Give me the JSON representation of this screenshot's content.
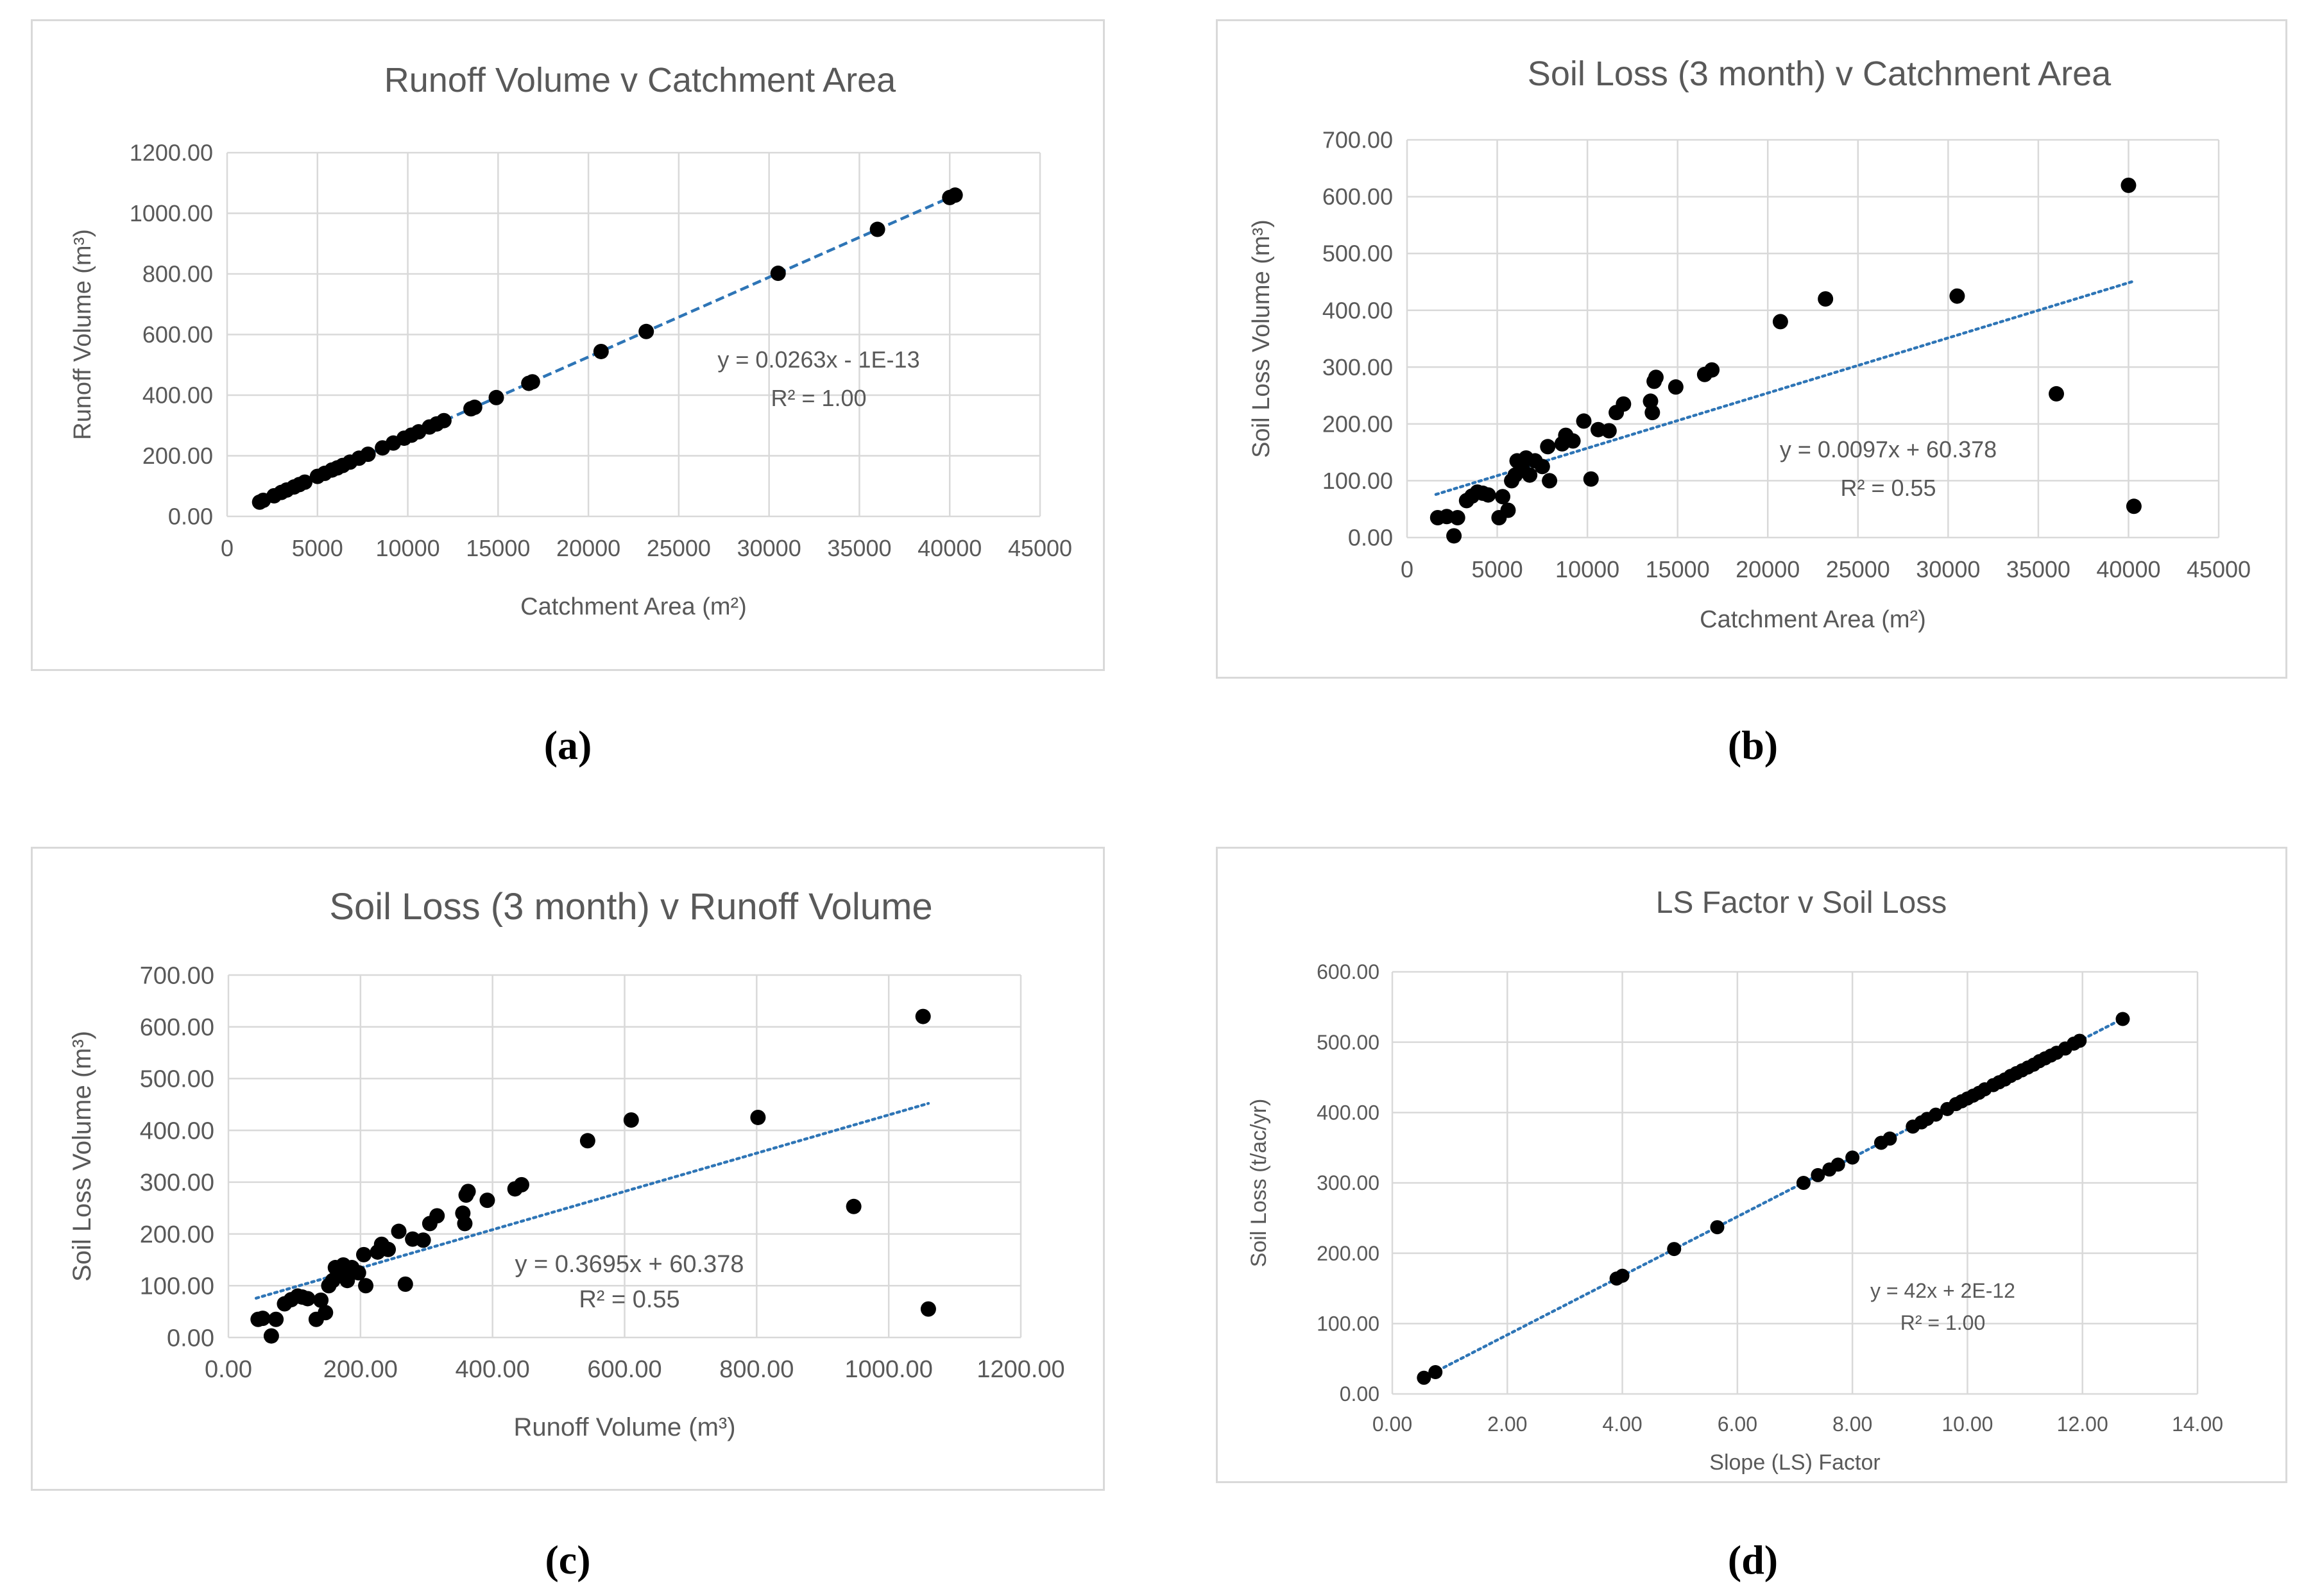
{
  "captions": {
    "a": "(a)",
    "b": "(b)",
    "c": "(c)",
    "d": "(d)"
  },
  "colors": {
    "point": "#000000",
    "trend": "#2e75b6",
    "grid": "#d9d9d9",
    "text": "#595959"
  },
  "chart_data": [
    {
      "id": "a",
      "type": "scatter",
      "title": "Runoff Volume v Catchment Area",
      "xlabel": "Catchment Area (m²)",
      "ylabel": "Runoff Volume (m³)",
      "xlim": [
        0,
        45000
      ],
      "xstep": 5000,
      "xdec": 0,
      "ylim": [
        0,
        1200
      ],
      "ystep": 200,
      "ydec": 2,
      "x_ticks": [
        "0",
        "5000",
        "10000",
        "15000",
        "20000",
        "25000",
        "30000",
        "35000",
        "40000",
        "45000"
      ],
      "y_ticks": [
        "0.00",
        "200.00",
        "400.00",
        "600.00",
        "800.00",
        "1000.00",
        "1200.00"
      ],
      "trendline": {
        "slope": 0.0263,
        "intercept": 0,
        "style": "dashed",
        "x_range": [
          1800,
          40300
        ]
      },
      "equation": "y = 0.0263x - 1E-13",
      "r2": "R² = 1.00",
      "points": [
        [
          1800,
          47
        ],
        [
          2000,
          53
        ],
        [
          2600,
          68
        ],
        [
          3000,
          79
        ],
        [
          3300,
          87
        ],
        [
          3700,
          97
        ],
        [
          4000,
          105
        ],
        [
          4300,
          113
        ],
        [
          5000,
          132
        ],
        [
          5400,
          142
        ],
        [
          5800,
          153
        ],
        [
          6100,
          160
        ],
        [
          6400,
          168
        ],
        [
          6800,
          179
        ],
        [
          7300,
          192
        ],
        [
          7800,
          205
        ],
        [
          8600,
          226
        ],
        [
          9200,
          242
        ],
        [
          9800,
          258
        ],
        [
          10200,
          268
        ],
        [
          10600,
          279
        ],
        [
          11200,
          295
        ],
        [
          11600,
          305
        ],
        [
          12000,
          316
        ],
        [
          13500,
          355
        ],
        [
          13700,
          360
        ],
        [
          14900,
          392
        ],
        [
          16700,
          439
        ],
        [
          16900,
          444
        ],
        [
          20700,
          544
        ],
        [
          23200,
          610
        ],
        [
          30500,
          802
        ],
        [
          36000,
          947
        ],
        [
          40000,
          1052
        ],
        [
          40300,
          1060
        ]
      ]
    },
    {
      "id": "b",
      "type": "scatter",
      "title": "Soil Loss (3 month) v Catchment Area",
      "xlabel": "Catchment Area (m²)",
      "ylabel": "Soil Loss Volume (m³)",
      "xlim": [
        0,
        45000
      ],
      "xstep": 5000,
      "xdec": 0,
      "ylim": [
        0,
        700
      ],
      "ystep": 100,
      "ydec": 2,
      "x_ticks": [
        "0",
        "5000",
        "10000",
        "15000",
        "20000",
        "25000",
        "30000",
        "35000",
        "40000",
        "45000"
      ],
      "y_ticks": [
        "0.00",
        "100.00",
        "200.00",
        "300.00",
        "400.00",
        "500.00",
        "600.00",
        "700.00"
      ],
      "trendline": {
        "slope": 0.0097,
        "intercept": 60.378,
        "style": "dotted",
        "x_range": [
          1600,
          40300
        ]
      },
      "equation": "y = 0.0097x + 60.378",
      "r2": "R² = 0.55",
      "points": [
        [
          1700,
          35
        ],
        [
          2200,
          37
        ],
        [
          2600,
          3
        ],
        [
          2800,
          35
        ],
        [
          3300,
          65
        ],
        [
          3600,
          73
        ],
        [
          3900,
          80
        ],
        [
          4200,
          78
        ],
        [
          4500,
          75
        ],
        [
          5100,
          35
        ],
        [
          5300,
          72
        ],
        [
          5600,
          48
        ],
        [
          5800,
          100
        ],
        [
          6000,
          110
        ],
        [
          6100,
          135
        ],
        [
          6400,
          120
        ],
        [
          6600,
          140
        ],
        [
          6800,
          110
        ],
        [
          7100,
          135
        ],
        [
          7500,
          125
        ],
        [
          7800,
          160
        ],
        [
          7900,
          100
        ],
        [
          8600,
          165
        ],
        [
          8800,
          180
        ],
        [
          9200,
          170
        ],
        [
          9800,
          205
        ],
        [
          10200,
          103
        ],
        [
          10600,
          190
        ],
        [
          11200,
          188
        ],
        [
          11600,
          220
        ],
        [
          12000,
          235
        ],
        [
          13500,
          240
        ],
        [
          13600,
          220
        ],
        [
          13700,
          275
        ],
        [
          13800,
          282
        ],
        [
          14900,
          265
        ],
        [
          16500,
          287
        ],
        [
          16900,
          295
        ],
        [
          20700,
          380
        ],
        [
          23200,
          420
        ],
        [
          30500,
          425
        ],
        [
          36000,
          253
        ],
        [
          40000,
          620
        ],
        [
          40300,
          55
        ]
      ]
    },
    {
      "id": "c",
      "type": "scatter",
      "title": "Soil Loss (3 month) v Runoff Volume",
      "xlabel": "Runoff Volume (m³)",
      "ylabel": "Soil Loss Volume (m³)",
      "xlim": [
        0,
        1200
      ],
      "xstep": 200,
      "xdec": 2,
      "ylim": [
        0,
        700
      ],
      "ystep": 100,
      "ydec": 2,
      "x_ticks": [
        "0.00",
        "200.00",
        "400.00",
        "600.00",
        "800.00",
        "1000.00",
        "1200.00"
      ],
      "y_ticks": [
        "0.00",
        "100.00",
        "200.00",
        "300.00",
        "400.00",
        "500.00",
        "600.00",
        "700.00"
      ],
      "trendline": {
        "slope": 0.3695,
        "intercept": 60.378,
        "style": "dotted",
        "x_range": [
          42,
          1060
        ]
      },
      "equation": "y = 0.3695x + 60.378",
      "r2": "R² = 0.55",
      "points": [
        [
          45,
          35
        ],
        [
          52,
          37
        ],
        [
          65,
          3
        ],
        [
          72,
          35
        ],
        [
          85,
          65
        ],
        [
          95,
          73
        ],
        [
          105,
          80
        ],
        [
          112,
          78
        ],
        [
          120,
          75
        ],
        [
          133,
          35
        ],
        [
          140,
          72
        ],
        [
          147,
          48
        ],
        [
          152,
          100
        ],
        [
          158,
          110
        ],
        [
          162,
          135
        ],
        [
          168,
          120
        ],
        [
          174,
          140
        ],
        [
          180,
          110
        ],
        [
          187,
          135
        ],
        [
          197,
          125
        ],
        [
          205,
          160
        ],
        [
          208,
          100
        ],
        [
          226,
          165
        ],
        [
          232,
          180
        ],
        [
          242,
          170
        ],
        [
          258,
          205
        ],
        [
          268,
          103
        ],
        [
          279,
          190
        ],
        [
          295,
          188
        ],
        [
          305,
          220
        ],
        [
          316,
          235
        ],
        [
          355,
          240
        ],
        [
          358,
          220
        ],
        [
          360,
          275
        ],
        [
          363,
          282
        ],
        [
          392,
          265
        ],
        [
          434,
          287
        ],
        [
          444,
          295
        ],
        [
          544,
          380
        ],
        [
          610,
          420
        ],
        [
          802,
          425
        ],
        [
          947,
          253
        ],
        [
          1052,
          620
        ],
        [
          1060,
          55
        ]
      ]
    },
    {
      "id": "d",
      "type": "scatter",
      "title": "LS Factor v Soil Loss",
      "xlabel": "Slope (LS) Factor",
      "ylabel": "Soil Loss (t/ac/yr)",
      "xlim": [
        0,
        14
      ],
      "xstep": 2,
      "xdec": 2,
      "ylim": [
        0,
        600
      ],
      "ystep": 100,
      "ydec": 2,
      "x_ticks": [
        "0.00",
        "2.00",
        "4.00",
        "6.00",
        "8.00",
        "10.00",
        "12.00",
        "14.00"
      ],
      "y_ticks": [
        "0.00",
        "100.00",
        "200.00",
        "300.00",
        "400.00",
        "500.00",
        "600.00"
      ],
      "trendline": {
        "slope": 42,
        "intercept": 0,
        "style": "dotted",
        "x_range": [
          0.5,
          12.7
        ]
      },
      "equation": "y = 42x + 2E-12",
      "r2": "R² = 1.00",
      "points": [
        [
          0.55,
          23
        ],
        [
          0.75,
          31
        ],
        [
          3.9,
          164
        ],
        [
          4.0,
          168
        ],
        [
          4.9,
          206
        ],
        [
          5.65,
          237
        ],
        [
          7.15,
          300
        ],
        [
          7.4,
          311
        ],
        [
          7.6,
          319
        ],
        [
          7.75,
          326
        ],
        [
          8.0,
          336
        ],
        [
          8.5,
          357
        ],
        [
          8.65,
          363
        ],
        [
          9.05,
          380
        ],
        [
          9.2,
          386
        ],
        [
          9.3,
          391
        ],
        [
          9.45,
          397
        ],
        [
          9.65,
          405
        ],
        [
          9.8,
          412
        ],
        [
          9.9,
          416
        ],
        [
          10.0,
          420
        ],
        [
          10.1,
          424
        ],
        [
          10.2,
          428
        ],
        [
          10.3,
          433
        ],
        [
          10.45,
          439
        ],
        [
          10.55,
          443
        ],
        [
          10.65,
          447
        ],
        [
          10.75,
          452
        ],
        [
          10.85,
          456
        ],
        [
          10.95,
          460
        ],
        [
          11.05,
          464
        ],
        [
          11.15,
          468
        ],
        [
          11.25,
          473
        ],
        [
          11.35,
          477
        ],
        [
          11.45,
          481
        ],
        [
          11.55,
          485
        ],
        [
          11.7,
          491
        ],
        [
          11.85,
          498
        ],
        [
          11.95,
          502
        ],
        [
          12.7,
          533
        ]
      ]
    }
  ]
}
